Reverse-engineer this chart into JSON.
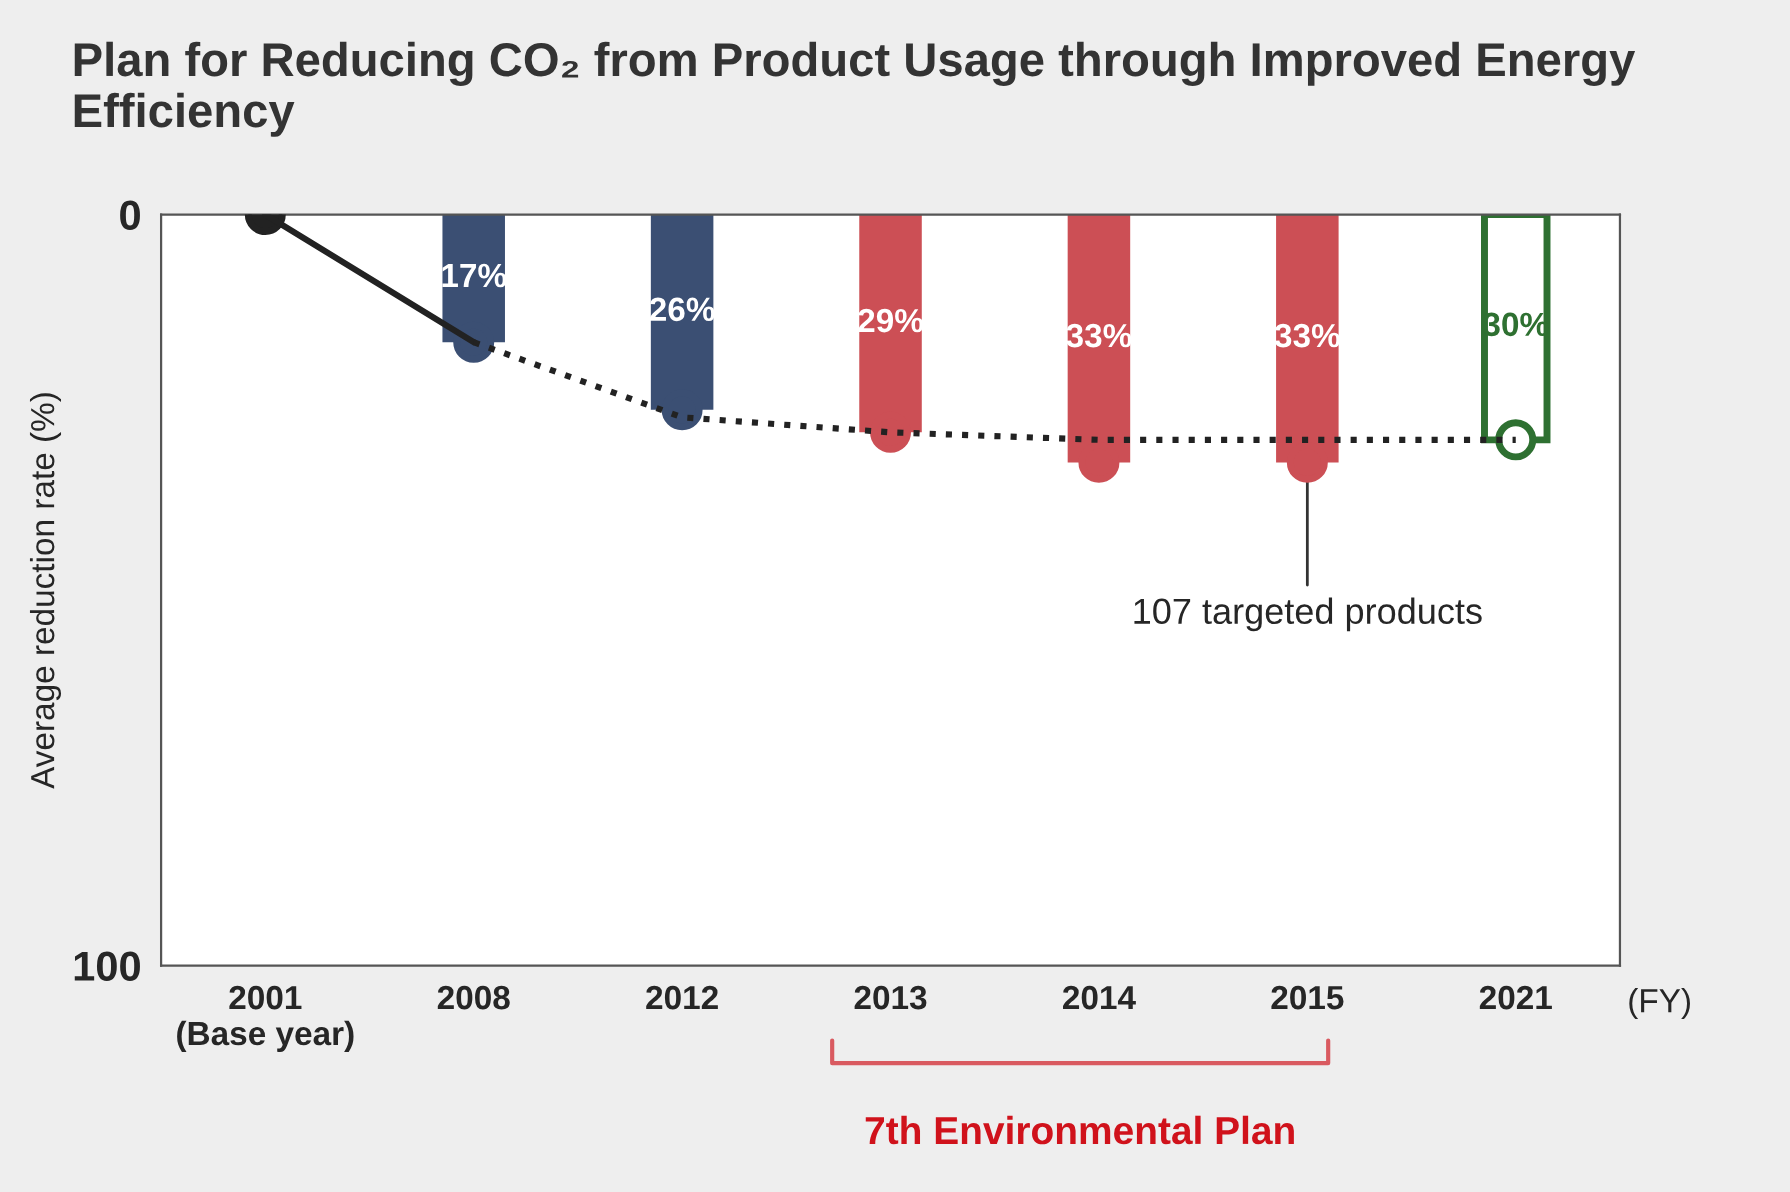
{
  "chart_data": {
    "type": "scatter",
    "title": "Plan for Reducing CO₂ from Product Usage through Improved Energy Efficiency",
    "ylabel": "Average reduction rate (%)",
    "xlabel": "(FY)",
    "categories": [
      "2001\n(Base year)",
      "2008",
      "2012",
      "2013",
      "2014",
      "2015",
      "2021"
    ],
    "series": [
      {
        "type": "bar",
        "values": [
          null,
          17,
          26,
          29,
          33,
          33,
          30
        ],
        "colors": [
          null,
          "#3b4f73",
          "#3b4f73",
          "#cc4f55",
          "#cc4f55",
          "#cc4f55",
          "#2e7031"
        ],
        "value_labels": [
          null,
          "17%",
          "26%",
          "29%",
          "33%",
          "33%",
          "30%"
        ]
      },
      {
        "type": "line",
        "line_style": "solid",
        "color": "#222222",
        "values": [
          0,
          17,
          null,
          null,
          null,
          null,
          null
        ]
      },
      {
        "type": "line",
        "line_style": "dotted",
        "color": "#222222",
        "values": [
          null,
          17,
          27,
          29,
          30,
          30,
          30
        ]
      },
      {
        "marker": "circle",
        "values": [
          0,
          17,
          26,
          29,
          33,
          33,
          30
        ],
        "colors": [
          "#222222",
          "#3b4f73",
          "#3b4f73",
          "#cc4f55",
          "#cc4f55",
          "#cc4f55",
          "#2e7031"
        ]
      }
    ],
    "ylim": [
      100,
      0
    ],
    "yticks": [
      0,
      100
    ],
    "grid": false,
    "legend": false,
    "annotations": [
      {
        "text": "107 targeted products",
        "x": "2015",
        "y": 33
      },
      "7th Environmental Plan"
    ]
  }
}
